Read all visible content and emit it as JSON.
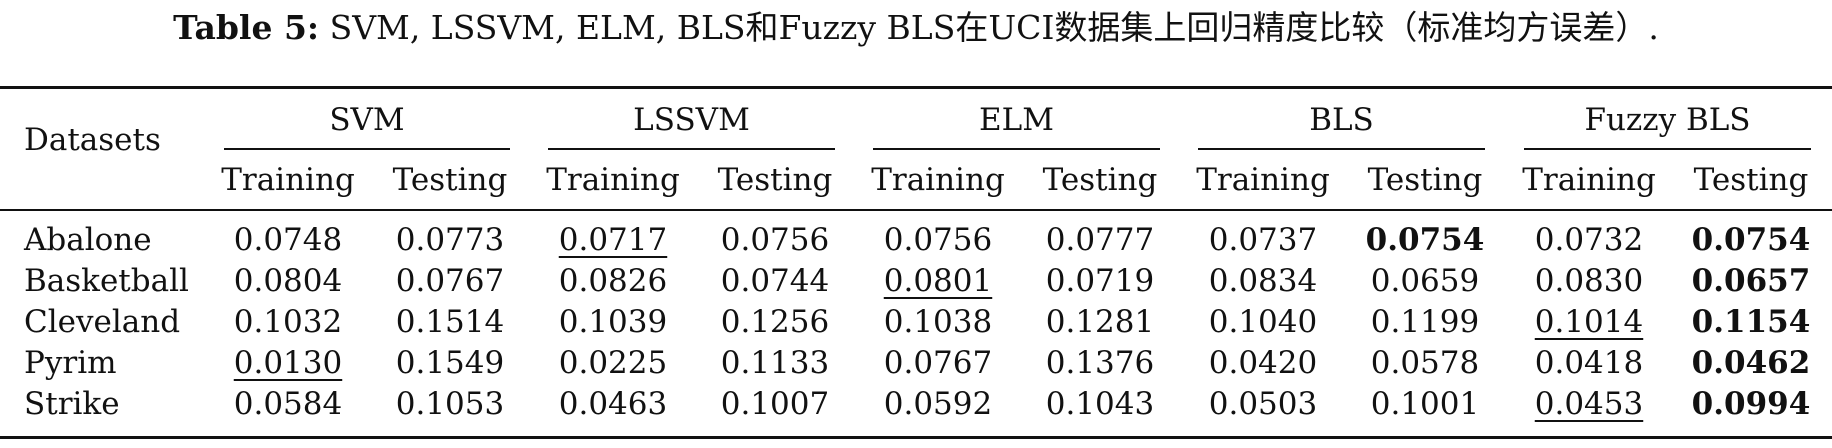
{
  "caption": {
    "label": "Table 5:",
    "text": "SVM, LSSVM, ELM, BLS和Fuzzy BLS在UCI数据集上回归精度比较（标准均方误差）."
  },
  "table": {
    "row_header": "Datasets",
    "methods": [
      "SVM",
      "LSSVM",
      "ELM",
      "BLS",
      "Fuzzy BLS"
    ],
    "subheaders": [
      "Training",
      "Testing",
      "Training",
      "Testing",
      "Training",
      "Testing",
      "Training",
      "Testing",
      "Training",
      "Testing"
    ],
    "rows": [
      {
        "name": "Abalone",
        "values": [
          "0.0748",
          "0.0773",
          "0.0717",
          "0.0756",
          "0.0756",
          "0.0777",
          "0.0737",
          "0.0754",
          "0.0732",
          "0.0754"
        ],
        "underlined": [
          2
        ],
        "bold": [
          7,
          9
        ]
      },
      {
        "name": "Basketball",
        "values": [
          "0.0804",
          "0.0767",
          "0.0826",
          "0.0744",
          "0.0801",
          "0.0719",
          "0.0834",
          "0.0659",
          "0.0830",
          "0.0657"
        ],
        "underlined": [
          4
        ],
        "bold": [
          9
        ]
      },
      {
        "name": "Cleveland",
        "values": [
          "0.1032",
          "0.1514",
          "0.1039",
          "0.1256",
          "0.1038",
          "0.1281",
          "0.1040",
          "0.1199",
          "0.1014",
          "0.1154"
        ],
        "underlined": [
          8
        ],
        "bold": [
          9
        ]
      },
      {
        "name": "Pyrim",
        "values": [
          "0.0130",
          "0.1549",
          "0.0225",
          "0.1133",
          "0.0767",
          "0.1376",
          "0.0420",
          "0.0578",
          "0.0418",
          "0.0462"
        ],
        "underlined": [
          0
        ],
        "bold": [
          9
        ]
      },
      {
        "name": "Strike",
        "values": [
          "0.0584",
          "0.1053",
          "0.0463",
          "0.1007",
          "0.0592",
          "0.1043",
          "0.0503",
          "0.1001",
          "0.0453",
          "0.0994"
        ],
        "underlined": [
          8
        ],
        "bold": [
          9
        ]
      }
    ]
  }
}
